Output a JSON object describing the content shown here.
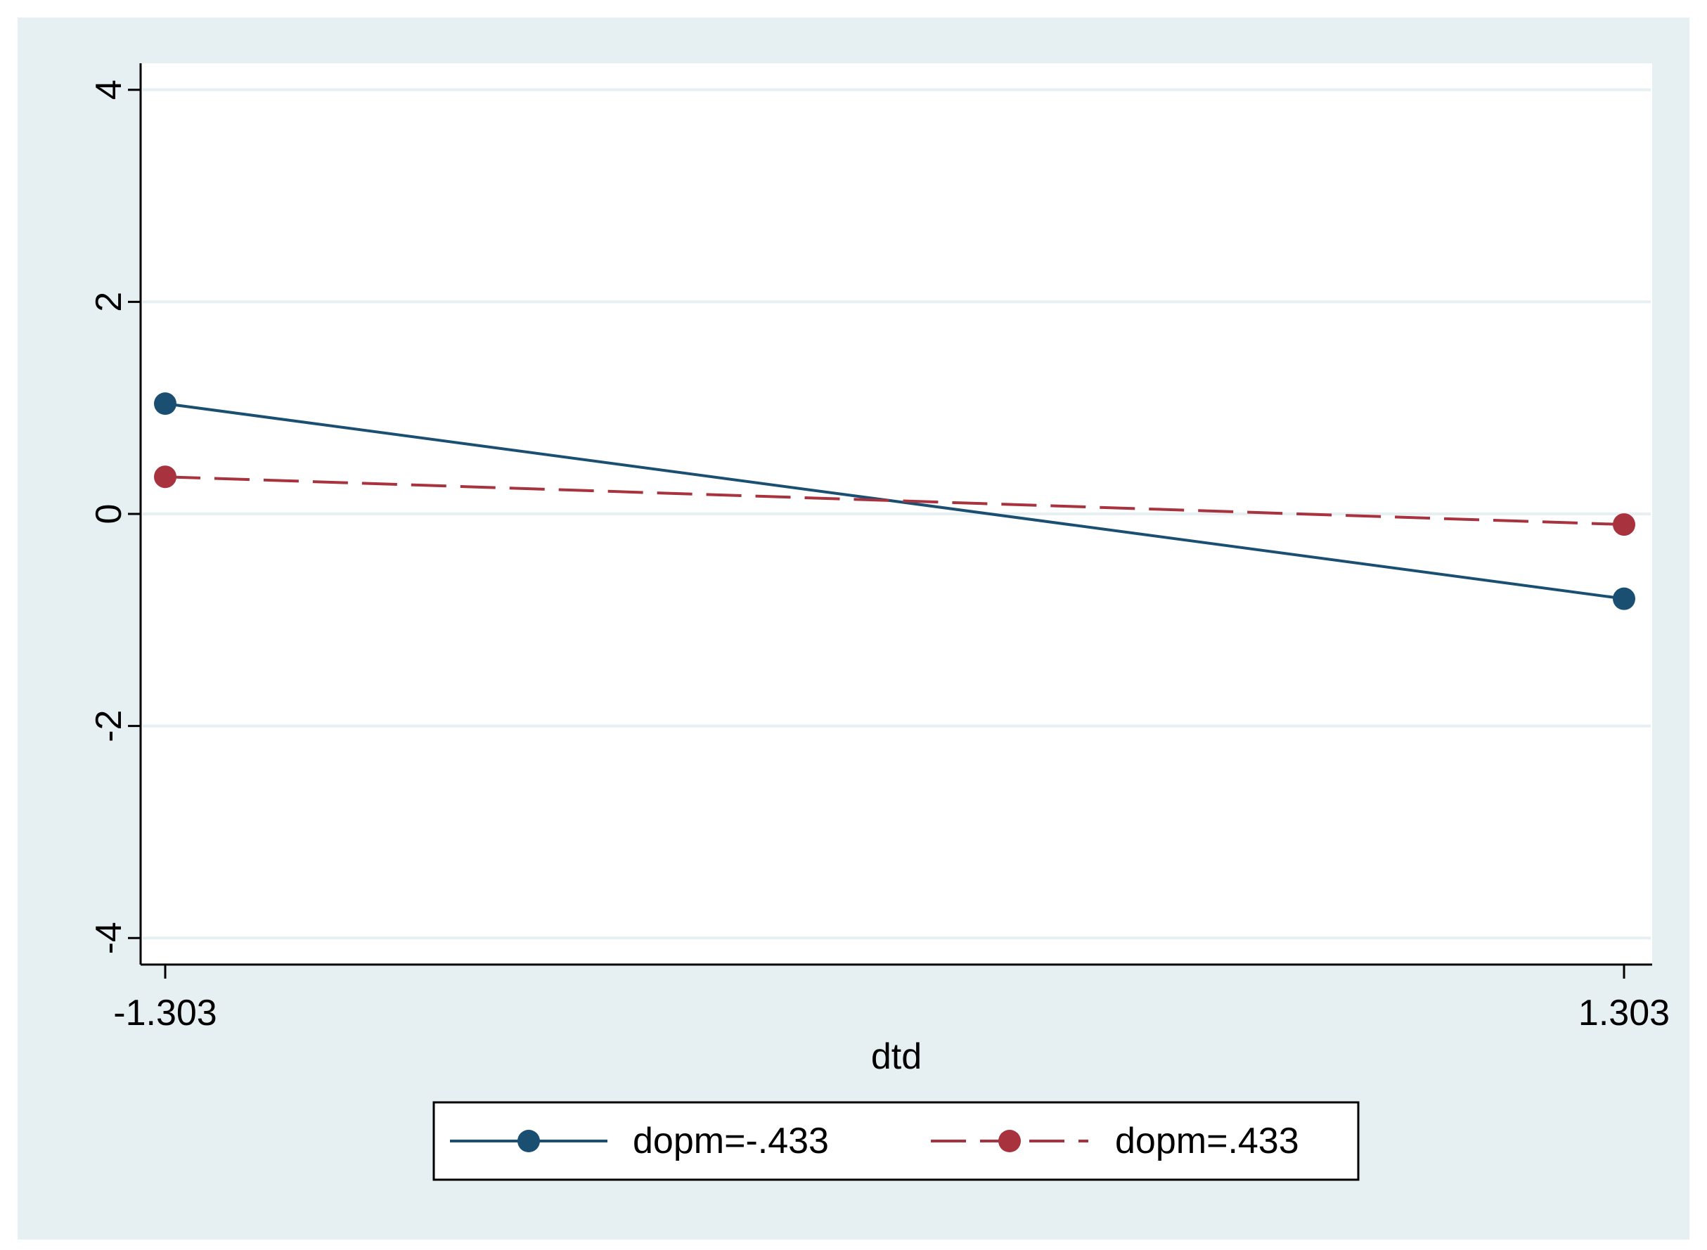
{
  "chart_data": {
    "type": "line",
    "title": "",
    "xlabel": "dtd",
    "ylabel": "",
    "x": [
      -1.303,
      1.303
    ],
    "x_tick_labels": [
      "-1.303",
      "1.303"
    ],
    "y_ticks": [
      -4,
      -2,
      0,
      2,
      4
    ],
    "y_tick_labels": [
      "-4",
      "-2",
      "0",
      "2",
      "4"
    ],
    "ylim": [
      -4.25,
      4.25
    ],
    "grid": true,
    "legend_position": "bottom",
    "series": [
      {
        "name": "dopm=-.433",
        "values": [
          1.04,
          -0.8
        ],
        "color": "#1a4f72",
        "line_style": "solid",
        "marker": "circle"
      },
      {
        "name": "dopm=.433",
        "values": [
          0.35,
          -0.1
        ],
        "color": "#a8323e",
        "line_style": "dashed",
        "marker": "circle"
      }
    ],
    "colors": {
      "outer_background": "#e6f0f2",
      "plot_background": "#ffffff",
      "gridline": "#e6f0f2",
      "axis": "#000000"
    }
  }
}
